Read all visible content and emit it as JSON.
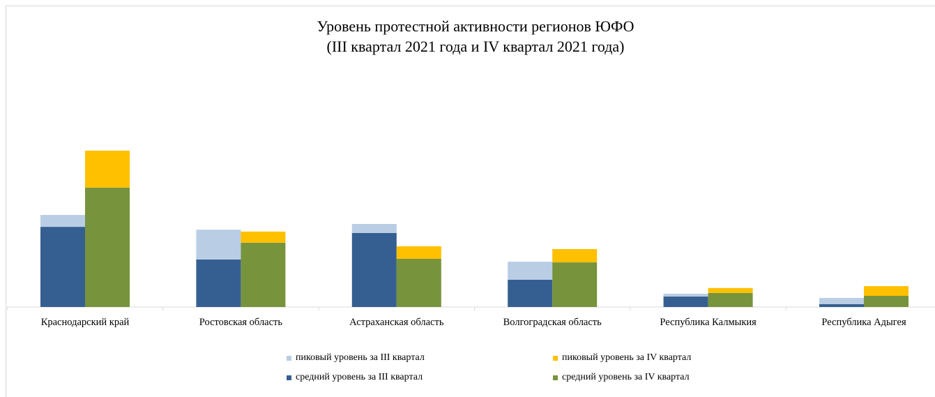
{
  "chart_data": {
    "type": "bar",
    "stacked": true,
    "title": "Уровень протестной активности регионов ЮФО",
    "subtitle": "(III квартал 2021 года и IV квартал 2021 года)",
    "categories": [
      "Краснодарский край",
      "Ростовская область",
      "Астраханская область",
      "Волгоградская область",
      "Республика Калмыкия",
      "Республика Адыгея"
    ],
    "ylim": [
      0,
      100
    ],
    "y_axis_visible": false,
    "grid": false,
    "legend_position": "bottom",
    "stacks": [
      {
        "series": [
          {
            "name": "средний уровень за III квартал",
            "color": "#365F91",
            "values": [
              33.8,
              20.0,
              31.2,
              11.5,
              4.4,
              1.2
            ]
          },
          {
            "name": "пиковый уровень за III квартал",
            "color": "#B9CDE5",
            "values": [
              5.0,
              12.6,
              3.8,
              7.6,
              1.2,
              2.6
            ]
          }
        ]
      },
      {
        "series": [
          {
            "name": "средний уровень за IV квартал",
            "color": "#77933C",
            "values": [
              50.3,
              27.1,
              20.3,
              18.8,
              5.9,
              4.7
            ]
          },
          {
            "name": "пиковый уровень за IV квартал",
            "color": "#FFC000",
            "values": [
              15.6,
              4.7,
              5.3,
              5.6,
              2.1,
              4.1
            ]
          }
        ]
      }
    ]
  }
}
